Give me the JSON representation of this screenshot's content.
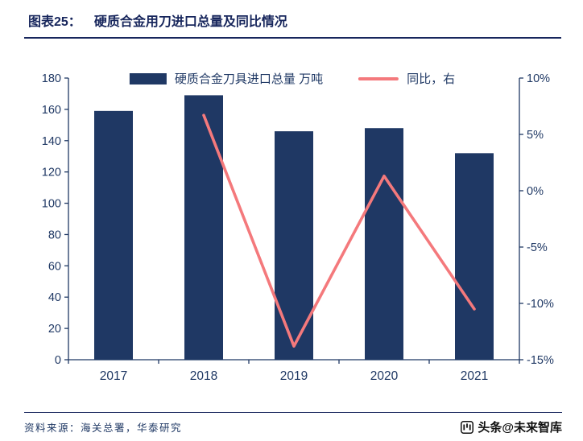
{
  "header": {
    "label": "图表25：",
    "title": "硬质合金用刀进口总量及同比情况"
  },
  "footer": {
    "source": "资料来源：海关总署，华泰研究",
    "watermark": "头条@未来智库"
  },
  "colors": {
    "navy": "#17265c",
    "bar": "#1f3864",
    "line": "#f4797c",
    "text": "#1f3864"
  },
  "chart_data": {
    "type": "combo",
    "title": "硬质合金用刀进口总量及同比情况",
    "categories": [
      "2017",
      "2018",
      "2019",
      "2020",
      "2021"
    ],
    "series": [
      {
        "name": "硬质合金刀具进口总量 万吨",
        "type": "bar",
        "axis": "left",
        "color": "#1f3864",
        "values": [
          159,
          169,
          146,
          148,
          132
        ]
      },
      {
        "name": "同比，右",
        "type": "line",
        "axis": "right",
        "color": "#f4797c",
        "values": [
          null,
          6.7,
          -13.8,
          1.3,
          -10.5
        ]
      }
    ],
    "left_axis": {
      "min": 0,
      "max": 180,
      "step": 20,
      "ticks": [
        "0",
        "20",
        "40",
        "60",
        "80",
        "100",
        "120",
        "140",
        "160",
        "180"
      ]
    },
    "right_axis": {
      "min": -15,
      "max": 10,
      "step": 5,
      "suffix": "%",
      "ticks": [
        "-15%",
        "-10%",
        "-5%",
        "0%",
        "5%",
        "10%"
      ]
    },
    "grid": false,
    "legend_position": "top-center",
    "axis_color": "#1f3864",
    "text_color": "#1f3864"
  }
}
